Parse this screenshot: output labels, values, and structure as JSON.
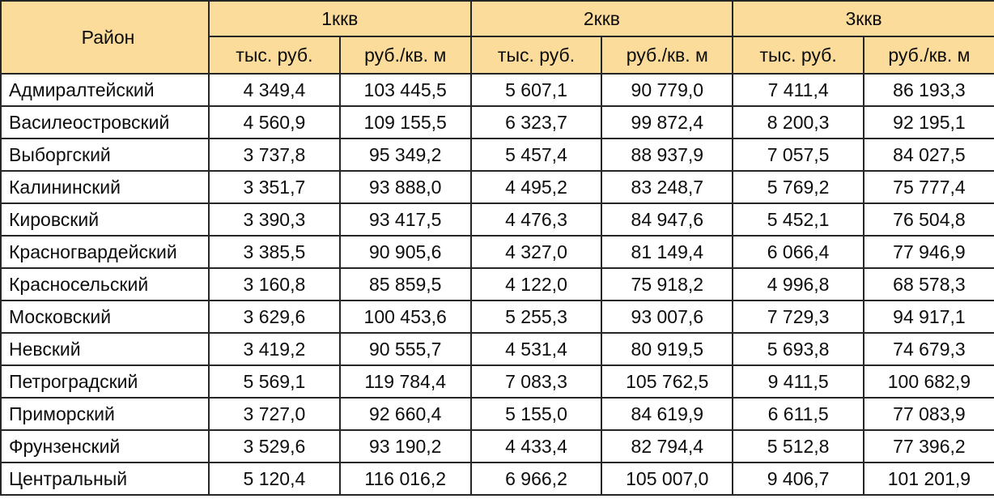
{
  "table": {
    "district_header": "Район",
    "quarter_groups": [
      {
        "label": "1ккв"
      },
      {
        "label": "2ккв"
      },
      {
        "label": "3ккв"
      }
    ],
    "unit_headers": [
      "тыс. руб.",
      "руб./кв. м"
    ],
    "rows": [
      {
        "district": "Адмиралтейский",
        "values": [
          "4 349,4",
          "103 445,5",
          "5 607,1",
          "90 779,0",
          "7 411,4",
          "86 193,3"
        ]
      },
      {
        "district": "Василеостровский",
        "values": [
          "4 560,9",
          "109 155,5",
          "6 323,7",
          "99 872,4",
          "8 200,3",
          "92 195,1"
        ]
      },
      {
        "district": "Выборгский",
        "values": [
          "3 737,8",
          "95 349,2",
          "5 457,4",
          "88 937,9",
          "7 057,5",
          "84 027,5"
        ]
      },
      {
        "district": "Калининский",
        "values": [
          "3 351,7",
          "93 888,0",
          "4 495,2",
          "83 248,7",
          "5 769,2",
          "75 777,4"
        ]
      },
      {
        "district": "Кировский",
        "values": [
          "3 390,3",
          "93 417,5",
          "4 476,3",
          "84 947,6",
          "5 452,1",
          "76 504,8"
        ]
      },
      {
        "district": "Красногвардейский",
        "values": [
          "3 385,5",
          "90 905,6",
          "4 327,0",
          "81 149,4",
          "6 066,4",
          "77 946,9"
        ]
      },
      {
        "district": "Красносельский",
        "values": [
          "3 160,8",
          "85 859,5",
          "4 122,0",
          "75 918,2",
          "4 996,8",
          "68 578,3"
        ]
      },
      {
        "district": "Московский",
        "values": [
          "3 629,6",
          "100 453,6",
          "5 255,3",
          "93 007,6",
          "7 729,3",
          "94 917,1"
        ]
      },
      {
        "district": "Невский",
        "values": [
          "3 419,2",
          "90 555,7",
          "4 531,4",
          "80 919,5",
          "5 693,8",
          "74 679,3"
        ]
      },
      {
        "district": "Петроградский",
        "values": [
          "5 569,1",
          "119 784,4",
          "7 083,3",
          "105 762,5",
          "9 411,5",
          "100 682,9"
        ]
      },
      {
        "district": "Приморский",
        "values": [
          "3 727,0",
          "92 660,4",
          "5 155,0",
          "84 619,9",
          "6 611,5",
          "77 083,9"
        ]
      },
      {
        "district": "Фрунзенский",
        "values": [
          "3 529,6",
          "93 190,2",
          "4 433,4",
          "82 794,4",
          "5 512,8",
          "77 396,2"
        ]
      },
      {
        "district": "Центральный",
        "values": [
          "5 120,4",
          "116 016,2",
          "6 966,2",
          "105 007,0",
          "9 406,7",
          "101 201,9"
        ]
      }
    ]
  },
  "colors": {
    "header_bg": "#FCDC9B",
    "body_bg": "#FFFFFF",
    "border": "#262626",
    "text": "#0D0D0D"
  },
  "chart_data": {
    "type": "table",
    "title": "",
    "row_header": "Район",
    "column_groups": [
      "1ккв",
      "2ккв",
      "3ккв"
    ],
    "sub_columns": [
      "тыс. руб.",
      "руб./кв. м"
    ],
    "columns": [
      "1ккв тыс. руб.",
      "1ккв руб./кв. м",
      "2ккв тыс. руб.",
      "2ккв руб./кв. м",
      "3ккв тыс. руб.",
      "3ккв руб./кв. м"
    ],
    "districts": [
      "Адмиралтейский",
      "Василеостровский",
      "Выборгский",
      "Калининский",
      "Кировский",
      "Красногвардейский",
      "Красносельский",
      "Московский",
      "Невский",
      "Петроградский",
      "Приморский",
      "Фрунзенский",
      "Центральный"
    ],
    "values": [
      [
        4349.4,
        103445.5,
        5607.1,
        90779.0,
        7411.4,
        86193.3
      ],
      [
        4560.9,
        109155.5,
        6323.7,
        99872.4,
        8200.3,
        92195.1
      ],
      [
        3737.8,
        95349.2,
        5457.4,
        88937.9,
        7057.5,
        84027.5
      ],
      [
        3351.7,
        93888.0,
        4495.2,
        83248.7,
        5769.2,
        75777.4
      ],
      [
        3390.3,
        93417.5,
        4476.3,
        84947.6,
        5452.1,
        76504.8
      ],
      [
        3385.5,
        90905.6,
        4327.0,
        81149.4,
        6066.4,
        77946.9
      ],
      [
        3160.8,
        85859.5,
        4122.0,
        75918.2,
        4996.8,
        68578.3
      ],
      [
        3629.6,
        100453.6,
        5255.3,
        93007.6,
        7729.3,
        94917.1
      ],
      [
        3419.2,
        90555.7,
        4531.4,
        80919.5,
        5693.8,
        74679.3
      ],
      [
        5569.1,
        119784.4,
        7083.3,
        105762.5,
        9411.5,
        100682.9
      ],
      [
        3727.0,
        92660.4,
        5155.0,
        84619.9,
        6611.5,
        77083.9
      ],
      [
        3529.6,
        93190.2,
        4433.4,
        82794.4,
        5512.8,
        77396.2
      ],
      [
        5120.4,
        116016.2,
        6966.2,
        105007.0,
        9406.7,
        101201.9
      ]
    ]
  }
}
